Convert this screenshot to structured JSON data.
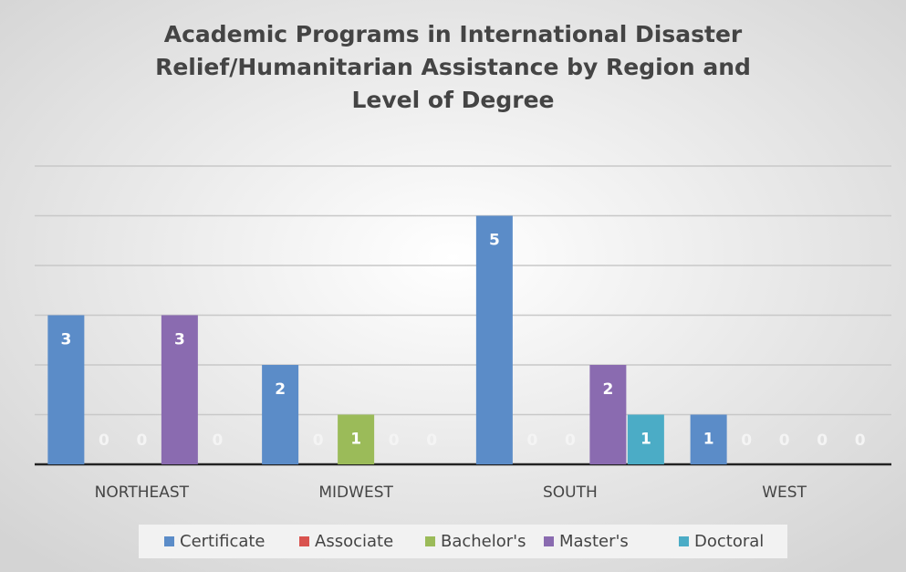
{
  "chart_data": {
    "type": "bar",
    "title": "Academic Programs in International Disaster Relief/Humanitarian Assistance by Region and Level of Degree",
    "categories": [
      "NORTHEAST",
      "MIDWEST",
      "SOUTH",
      "WEST"
    ],
    "series": [
      {
        "name": "Certificate",
        "color": "#5b8cc8",
        "values": [
          3,
          2,
          5,
          1
        ]
      },
      {
        "name": "Associate",
        "color": "#d9534f",
        "values": [
          0,
          0,
          0,
          0
        ]
      },
      {
        "name": "Bachelor's",
        "color": "#9bbb59",
        "values": [
          0,
          1,
          0,
          0
        ]
      },
      {
        "name": "Master's",
        "color": "#8a6bb0",
        "values": [
          3,
          0,
          2,
          0
        ]
      },
      {
        "name": "Doctoral",
        "color": "#4bacc6",
        "values": [
          0,
          0,
          1,
          0
        ]
      }
    ],
    "ylim": [
      0,
      6
    ],
    "yticks": [
      0,
      1,
      2,
      3,
      4,
      5,
      6
    ],
    "grid": true,
    "legend": "bottom"
  }
}
